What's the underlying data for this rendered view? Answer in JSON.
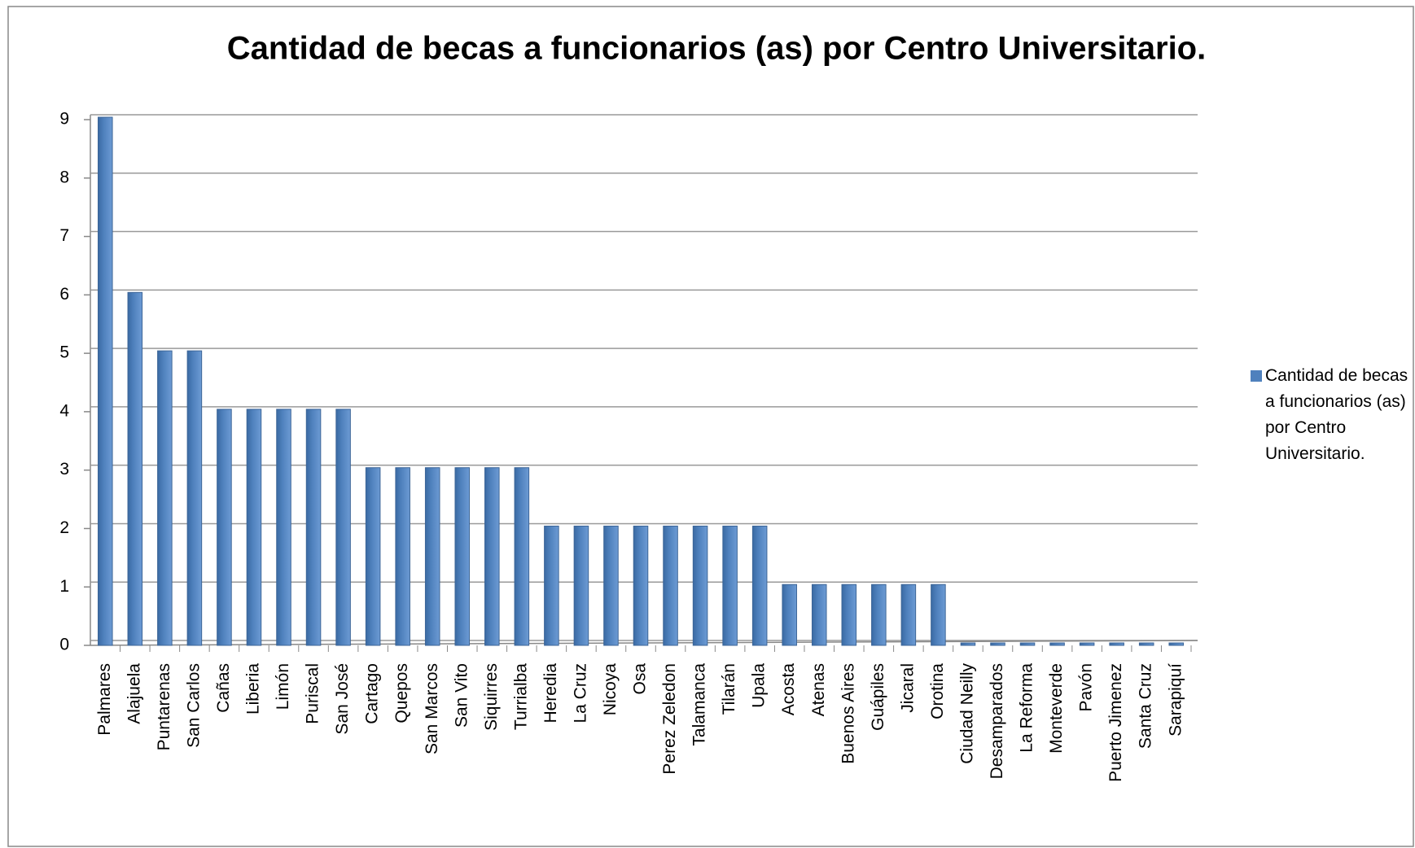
{
  "chart_data": {
    "type": "bar",
    "title": "Cantidad de becas a funcionarios (as) por Centro Universitario.",
    "categories": [
      "Palmares",
      "Alajuela",
      "Puntarenas",
      "San Carlos",
      "Cañas",
      "Liberia",
      "Limón",
      "Puriscal",
      "San José",
      "Cartago",
      "Quepos",
      "San Marcos",
      "San Vito",
      "Siquirres",
      "Turrialba",
      "Heredia",
      "La Cruz",
      "Nicoya",
      "Osa",
      "Perez Zeledon",
      "Talamanca",
      "Tilarán",
      "Upala",
      "Acosta",
      "Atenas",
      "Buenos Aires",
      "Guápiles",
      "Jicaral",
      "Orotina",
      "Ciudad Neilly",
      "Desamparados",
      "La Reforma",
      "Monteverde",
      "Pavón",
      "Puerto Jimenez",
      "Santa Cruz",
      "Sarapiquí"
    ],
    "series": [
      {
        "name": "Cantidad de becas a funcionarios (as) por Centro Universitario.",
        "color": "#4f81bd",
        "values": [
          9,
          6,
          5,
          5,
          4,
          4,
          4,
          4,
          4,
          3,
          3,
          3,
          3,
          3,
          3,
          2,
          2,
          2,
          2,
          2,
          2,
          2,
          2,
          1,
          1,
          1,
          1,
          1,
          1,
          0,
          0,
          0,
          0,
          0,
          0,
          0,
          0
        ]
      }
    ],
    "ylim": [
      0,
      9
    ],
    "yticks": [
      0,
      1,
      2,
      3,
      4,
      5,
      6,
      7,
      8,
      9
    ],
    "grid": true,
    "legend": "right"
  }
}
